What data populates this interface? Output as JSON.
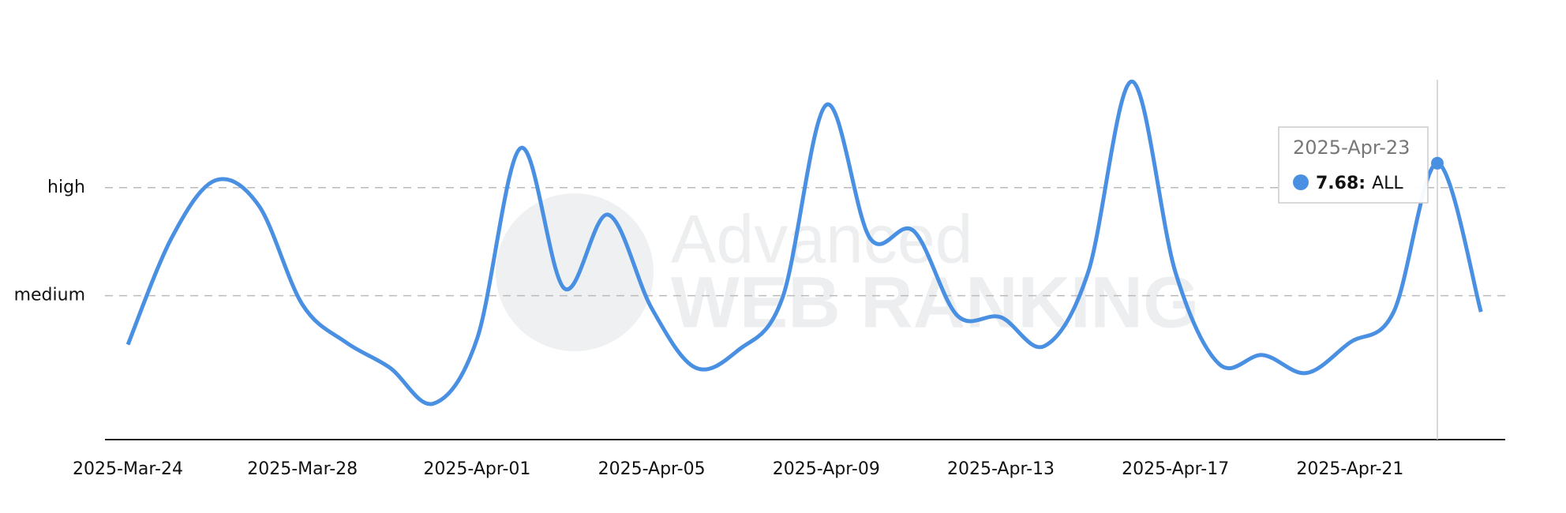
{
  "chart_data": {
    "type": "line",
    "x": [
      "2025-Mar-24",
      "2025-Mar-25",
      "2025-Mar-26",
      "2025-Mar-27",
      "2025-Mar-28",
      "2025-Mar-29",
      "2025-Mar-30",
      "2025-Mar-31",
      "2025-Apr-01",
      "2025-Apr-02",
      "2025-Apr-03",
      "2025-Apr-04",
      "2025-Apr-05",
      "2025-Apr-06",
      "2025-Apr-07",
      "2025-Apr-08",
      "2025-Apr-09",
      "2025-Apr-10",
      "2025-Apr-11",
      "2025-Apr-12",
      "2025-Apr-13",
      "2025-Apr-14",
      "2025-Apr-15",
      "2025-Apr-16",
      "2025-Apr-17",
      "2025-Apr-18",
      "2025-Apr-19",
      "2025-Apr-20",
      "2025-Apr-21",
      "2025-Apr-22",
      "2025-Apr-23",
      "2025-Apr-24"
    ],
    "xtick_every": 4,
    "series": [
      {
        "name": "ALL",
        "color": "#4a90e2",
        "values": [
          2.64,
          5.6,
          7.2,
          6.5,
          3.75,
          2.7,
          2.0,
          1.0,
          2.8,
          8.1,
          4.2,
          6.25,
          3.65,
          2.0,
          2.5,
          3.95,
          9.3,
          5.6,
          5.8,
          3.45,
          3.4,
          2.6,
          4.65,
          9.95,
          4.65,
          2.1,
          2.35,
          1.85,
          2.7,
          3.55,
          7.68,
          3.55
        ]
      }
    ],
    "ylim": [
      0,
      10
    ],
    "yticks": [
      {
        "value": 4,
        "label": "medium"
      },
      {
        "value": 7,
        "label": "high"
      }
    ],
    "grid": true,
    "tooltip": {
      "x": "2025-Apr-23",
      "value": 7.68,
      "value_label": "7.68:"
    },
    "watermark": [
      "Advanced",
      "WEB RANKING"
    ]
  }
}
